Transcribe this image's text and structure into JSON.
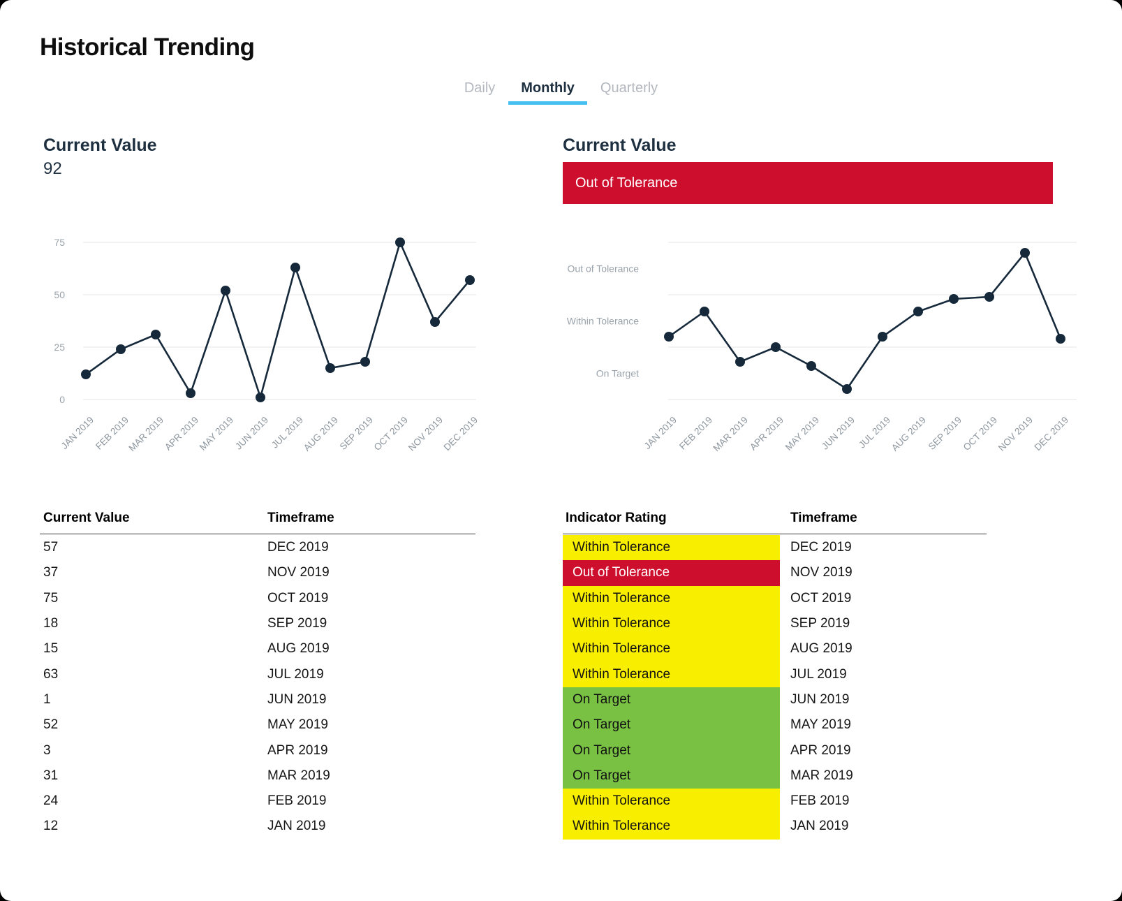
{
  "page": {
    "title": "Historical Trending"
  },
  "tabs": [
    {
      "label": "Daily",
      "active": false
    },
    {
      "label": "Monthly",
      "active": true
    },
    {
      "label": "Quarterly",
      "active": false
    }
  ],
  "colors": {
    "accent_blue": "#45C0F0",
    "red": "#CE0E2D",
    "yellow": "#F7EE00",
    "green": "#79C143",
    "navy_heading": "#1E3040",
    "chart_line": "#16293B",
    "gridline": "#E4E4E4",
    "axis_label_gray": "#8D969E"
  },
  "status_colors": {
    "yellow": {
      "bg": "#F7EE00",
      "text": "#111111"
    },
    "red": {
      "bg": "#CE0E2D",
      "text": "#FFFFFF"
    },
    "green": {
      "bg": "#79C143",
      "text": "#111111"
    }
  },
  "left_panel": {
    "heading": "Current Value",
    "current_value": "92"
  },
  "right_panel": {
    "heading": "Current Value",
    "banner": {
      "label": "Out of Tolerance"
    }
  },
  "chart_data": [
    {
      "type": "line",
      "title": "Current Value",
      "x": [
        "JAN 2019",
        "FEB 2019",
        "MAR 2019",
        "APR 2019",
        "MAY 2019",
        "JUN 2019",
        "JUL 2019",
        "AUG 2019",
        "SEP 2019",
        "OCT 2019",
        "NOV 2019",
        "DEC 2019"
      ],
      "values": [
        12,
        24,
        31,
        3,
        52,
        1,
        63,
        15,
        18,
        75,
        37,
        57
      ],
      "ylim": [
        0,
        75
      ],
      "yticks": [
        0,
        25,
        50,
        75
      ],
      "ytick_labels": [
        "0",
        "25",
        "50",
        "75"
      ],
      "grid": true,
      "legend": "none"
    },
    {
      "type": "line",
      "title": "Current Value (Indicator Rating)",
      "x": [
        "JAN 2019",
        "FEB 2019",
        "MAR 2019",
        "APR 2019",
        "MAY 2019",
        "JUN 2019",
        "JUL 2019",
        "AUG 2019",
        "SEP 2019",
        "OCT 2019",
        "NOV 2019",
        "DEC 2019"
      ],
      "values": [
        30,
        42,
        18,
        25,
        16,
        5,
        30,
        42,
        48,
        49,
        70,
        29
      ],
      "ylim": [
        0,
        75
      ],
      "yticks": [
        0,
        25,
        50,
        75
      ],
      "band_labels": [
        {
          "label": "Out of Tolerance",
          "center": 62.5
        },
        {
          "label": "Within Tolerance",
          "center": 37.5
        },
        {
          "label": "On Target",
          "center": 12.5
        }
      ],
      "grid": true,
      "legend": "none"
    }
  ],
  "left_table": {
    "headers": [
      "Current Value",
      "Timeframe"
    ],
    "rows": [
      [
        "57",
        "DEC 2019"
      ],
      [
        "37",
        "NOV 2019"
      ],
      [
        "75",
        "OCT 2019"
      ],
      [
        "18",
        "SEP 2019"
      ],
      [
        "15",
        "AUG 2019"
      ],
      [
        "63",
        "JUL 2019"
      ],
      [
        "1",
        "JUN 2019"
      ],
      [
        "52",
        "MAY 2019"
      ],
      [
        "3",
        "APR 2019"
      ],
      [
        "31",
        "MAR 2019"
      ],
      [
        "24",
        "FEB 2019"
      ],
      [
        "12",
        "JAN 2019"
      ]
    ]
  },
  "right_table": {
    "headers": [
      "Indicator Rating",
      "Timeframe"
    ],
    "rows": [
      {
        "rating": "Within Tolerance",
        "timeframe": "DEC 2019",
        "status": "yellow"
      },
      {
        "rating": "Out of Tolerance",
        "timeframe": "NOV 2019",
        "status": "red"
      },
      {
        "rating": "Within Tolerance",
        "timeframe": "OCT 2019",
        "status": "yellow"
      },
      {
        "rating": "Within Tolerance",
        "timeframe": "SEP 2019",
        "status": "yellow"
      },
      {
        "rating": "Within Tolerance",
        "timeframe": "AUG 2019",
        "status": "yellow"
      },
      {
        "rating": "Within Tolerance",
        "timeframe": "JUL 2019",
        "status": "yellow"
      },
      {
        "rating": "On Target",
        "timeframe": "JUN 2019",
        "status": "green"
      },
      {
        "rating": "On Target",
        "timeframe": "MAY 2019",
        "status": "green"
      },
      {
        "rating": "On Target",
        "timeframe": "APR 2019",
        "status": "green"
      },
      {
        "rating": "On Target",
        "timeframe": "MAR 2019",
        "status": "green"
      },
      {
        "rating": "Within Tolerance",
        "timeframe": "FEB 2019",
        "status": "yellow"
      },
      {
        "rating": "Within Tolerance",
        "timeframe": "JAN 2019",
        "status": "yellow"
      }
    ]
  }
}
